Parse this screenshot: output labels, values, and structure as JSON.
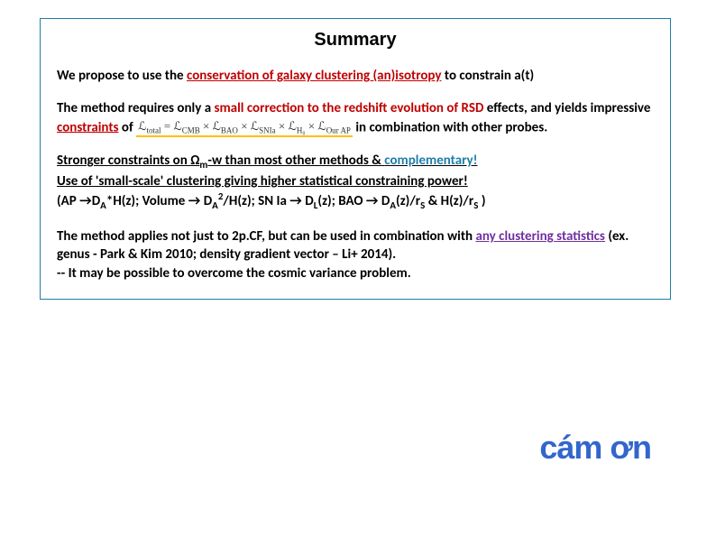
{
  "title": "Summary",
  "p1_a": "We propose to use the ",
  "p1_b": "conservation of galaxy clustering (an)isotropy",
  "p1_c": " to constrain a(t)",
  "p2_a": "The method requires only a ",
  "p2_b": "small correction to the redshift evolution of RSD",
  "p2_c": " effects, and yields impressive ",
  "p2_d": "constraints",
  "p2_e": " of   ",
  "p2_formula": "ℒ_total = ℒ_CMB × ℒ_BAO × ℒ_SNIa × ℒ_H₀ × ℒ_Our AP",
  "p2_f": "   in combination with other probes.",
  "p3_a": "Stronger constraints on Ω",
  "p3_a2": "m",
  "p3_a3": "-w than most other methods & ",
  "p3_b": "complementary!",
  "p3_c": "Use of 'small-scale' clustering giving higher statistical constraining power!",
  "p3_d_pre": " (AP →D",
  "p3_d_sub1": "A",
  "p3_d_1": "*H(z);  Volume → D",
  "p3_d_sub2": "A",
  "p3_d_sup": "2",
  "p3_d_2": "/H(z);  SN Ia → D",
  "p3_d_sub3": "L",
  "p3_d_3": "(z);  BAO → D",
  "p3_d_sub4": "A",
  "p3_d_4": "(z)/r",
  "p3_d_sub5": "S",
  "p3_d_5": " & H(z)/r",
  "p3_d_sub6": "S",
  "p3_d_6": " )",
  "p4_a": "The method applies not just to 2p.CF, but can be used in combination with ",
  "p4_b": "any clustering statistics",
  "p4_c": " (ex. genus - Park & Kim 2010;  density gradient vector – Li+ 2014).",
  "p4_d": " -- It may be possible to overcome the cosmic variance problem.",
  "thanks": "cám ơn"
}
